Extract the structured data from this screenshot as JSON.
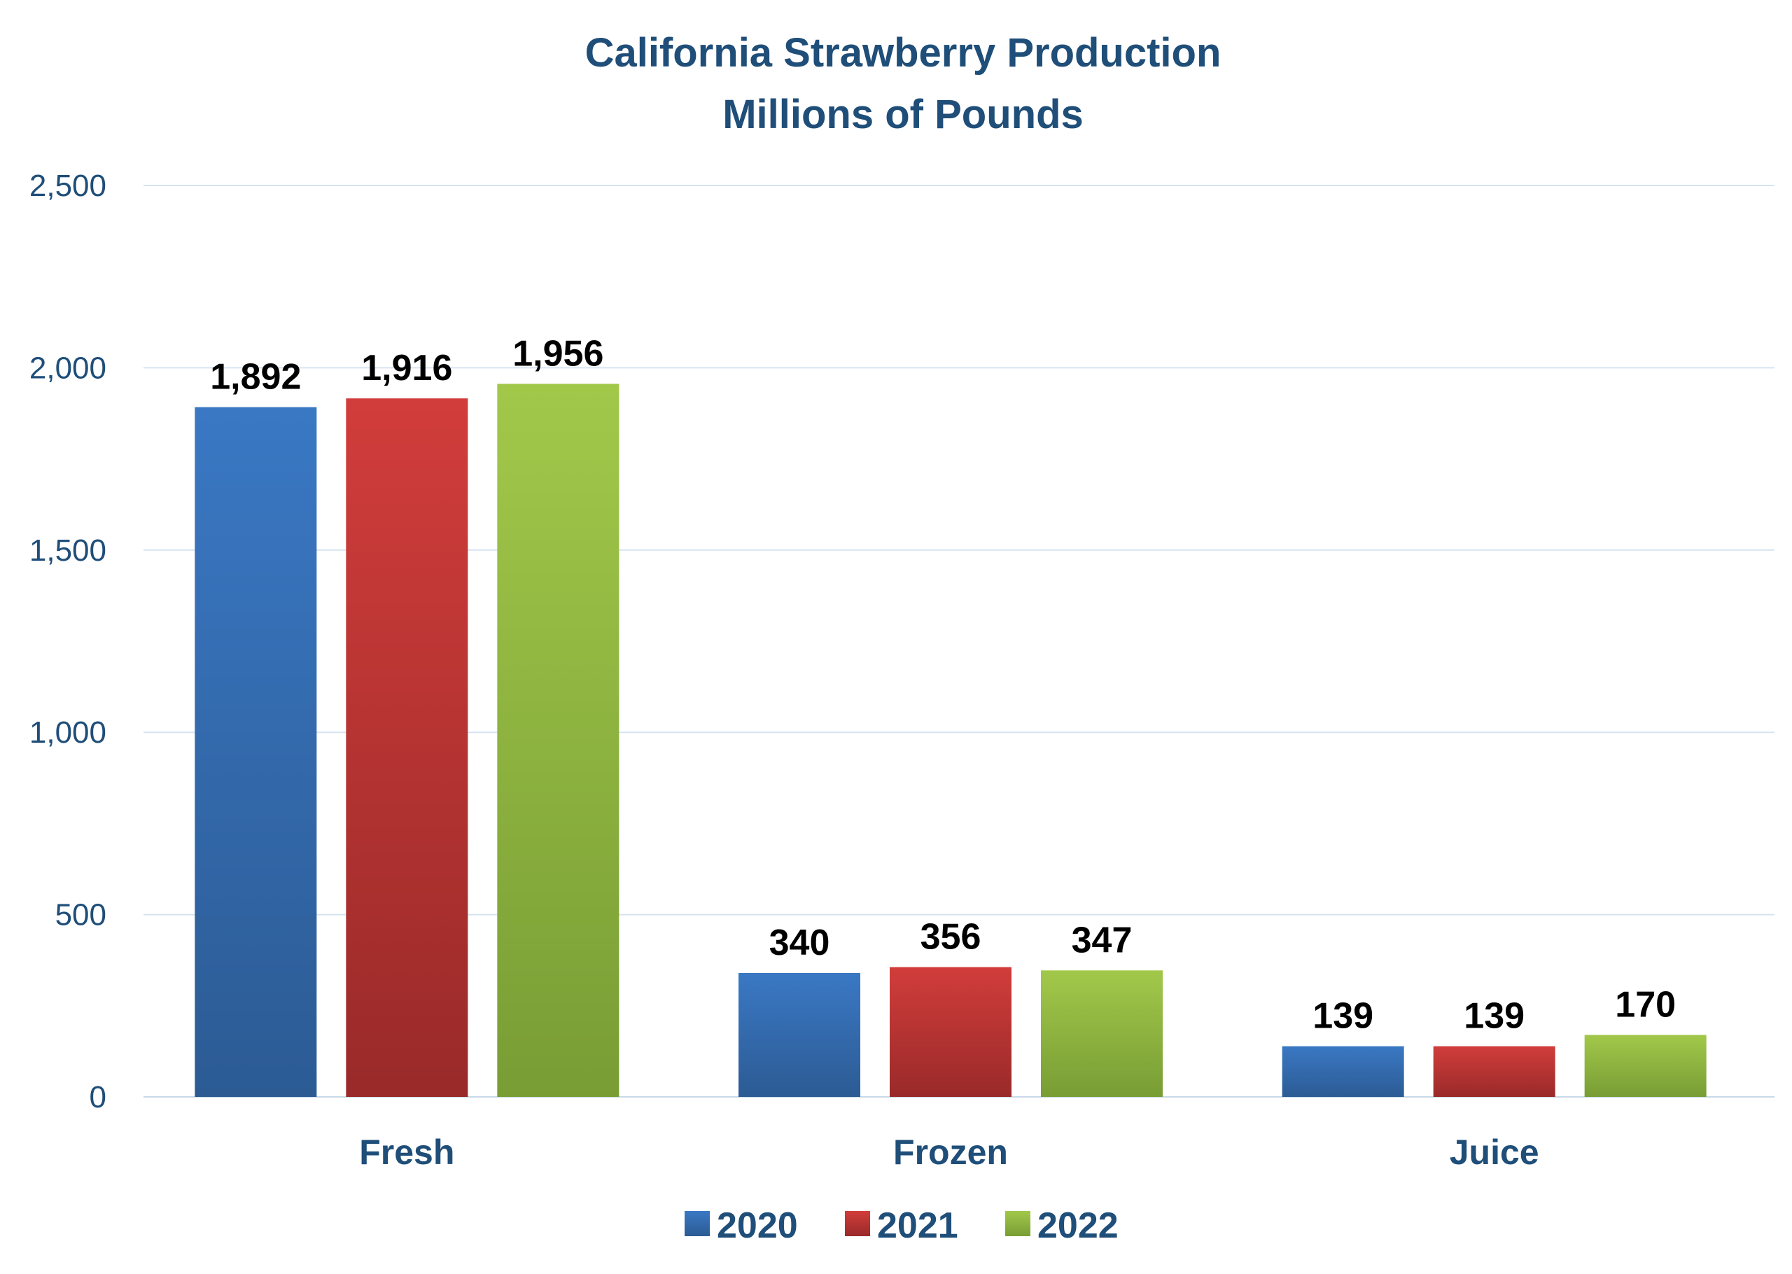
{
  "chart_data": {
    "type": "bar",
    "title": "California Strawberry Production",
    "subtitle": "Millions of Pounds",
    "xlabel": "",
    "ylabel": "",
    "categories": [
      "Fresh",
      "Frozen",
      "Juice"
    ],
    "series": [
      {
        "name": "2020",
        "values": [
          1892,
          340,
          139
        ],
        "labels": [
          "1,892",
          "340",
          "139"
        ],
        "color": "#3a78c4",
        "color_dark": "#2c5b94"
      },
      {
        "name": "2021",
        "values": [
          1916,
          356,
          139
        ],
        "labels": [
          "1,916",
          "356",
          "139"
        ],
        "color": "#d13d3b",
        "color_dark": "#992a29"
      },
      {
        "name": "2022",
        "values": [
          1956,
          347,
          170
        ],
        "labels": [
          "1,956",
          "347",
          "170"
        ],
        "color": "#a2c84a",
        "color_dark": "#789d35"
      }
    ],
    "ylim": [
      0,
      2500
    ],
    "yticks": [
      0,
      500,
      1000,
      1500,
      2000,
      2500
    ],
    "ytick_labels": [
      "0",
      "500",
      "1,000",
      "1,500",
      "2,000",
      "2,500"
    ],
    "grid": true,
    "legend_position": "bottom-center"
  }
}
